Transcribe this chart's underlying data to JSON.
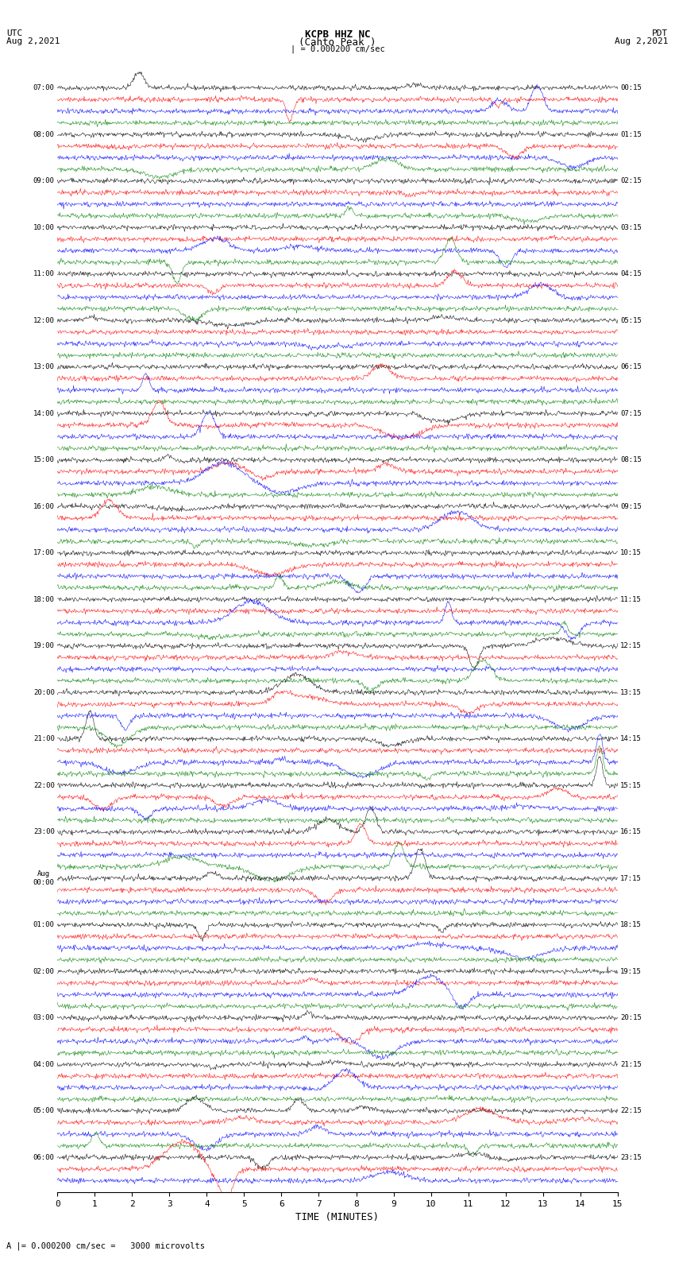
{
  "title_line1": "KCPB HHZ NC",
  "title_line2": "(Cahto Peak )",
  "scale_label": "| = 0.000200 cm/sec",
  "left_header": "UTC\nAug 2,2021",
  "right_header": "PDT\nAug 2,2021",
  "xlabel": "TIME (MINUTES)",
  "bottom_note": "= 0.000200 cm/sec =   3000 microvolts",
  "xmin": 0,
  "xmax": 15,
  "colors": [
    "black",
    "red",
    "blue",
    "green"
  ],
  "background": "white",
  "left_times": [
    "07:00",
    "",
    "",
    "",
    "08:00",
    "",
    "",
    "",
    "09:00",
    "",
    "",
    "",
    "10:00",
    "",
    "",
    "",
    "11:00",
    "",
    "",
    "",
    "12:00",
    "",
    "",
    "",
    "13:00",
    "",
    "",
    "",
    "14:00",
    "",
    "",
    "",
    "15:00",
    "",
    "",
    "",
    "16:00",
    "",
    "",
    "",
    "17:00",
    "",
    "",
    "",
    "18:00",
    "",
    "",
    "",
    "19:00",
    "",
    "",
    "",
    "20:00",
    "",
    "",
    "",
    "21:00",
    "",
    "",
    "",
    "22:00",
    "",
    "",
    "",
    "23:00",
    "",
    "",
    "",
    "Aug\n00:00",
    "",
    "",
    "",
    "01:00",
    "",
    "",
    "",
    "02:00",
    "",
    "",
    "",
    "03:00",
    "",
    "",
    "",
    "04:00",
    "",
    "",
    "",
    "05:00",
    "",
    "",
    "",
    "06:00",
    "",
    ""
  ],
  "right_times": [
    "00:15",
    "",
    "",
    "",
    "01:15",
    "",
    "",
    "",
    "02:15",
    "",
    "",
    "",
    "03:15",
    "",
    "",
    "",
    "04:15",
    "",
    "",
    "",
    "05:15",
    "",
    "",
    "",
    "06:15",
    "",
    "",
    "",
    "07:15",
    "",
    "",
    "",
    "08:15",
    "",
    "",
    "",
    "09:15",
    "",
    "",
    "",
    "10:15",
    "",
    "",
    "",
    "11:15",
    "",
    "",
    "",
    "12:15",
    "",
    "",
    "",
    "13:15",
    "",
    "",
    "",
    "14:15",
    "",
    "",
    "",
    "15:15",
    "",
    "",
    "",
    "16:15",
    "",
    "",
    "",
    "17:15",
    "",
    "",
    "",
    "18:15",
    "",
    "",
    "",
    "19:15",
    "",
    "",
    "",
    "20:15",
    "",
    "",
    "",
    "21:15",
    "",
    "",
    "",
    "22:15",
    "",
    "",
    "",
    "23:15",
    "",
    ""
  ],
  "num_traces": 95,
  "seed": 42
}
